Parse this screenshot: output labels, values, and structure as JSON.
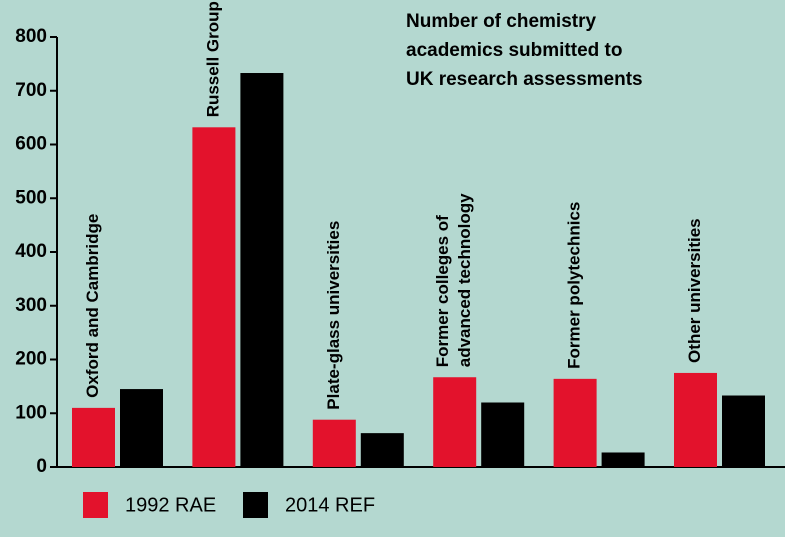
{
  "chart_data": {
    "type": "bar",
    "title": [
      "Number of chemistry",
      "academics submitted to",
      "UK research assessments"
    ],
    "categories": [
      [
        "Oxford and Cambridge"
      ],
      [
        "Russell Group excluding Oxbridge"
      ],
      [
        "Plate-glass universities"
      ],
      [
        "Former colleges of",
        "advanced technology"
      ],
      [
        "Former polytechnics"
      ],
      [
        "Other universities"
      ]
    ],
    "series": [
      {
        "name": "1992 RAE",
        "color": "#e3122c",
        "values": [
          110,
          632,
          88,
          167,
          164,
          175
        ]
      },
      {
        "name": "2014 REF",
        "color": "#000000",
        "values": [
          145,
          733,
          63,
          120,
          27,
          133
        ]
      }
    ],
    "ylim": [
      0,
      800
    ],
    "yticks": [
      0,
      100,
      200,
      300,
      400,
      500,
      600,
      700,
      800
    ],
    "grid": false
  }
}
